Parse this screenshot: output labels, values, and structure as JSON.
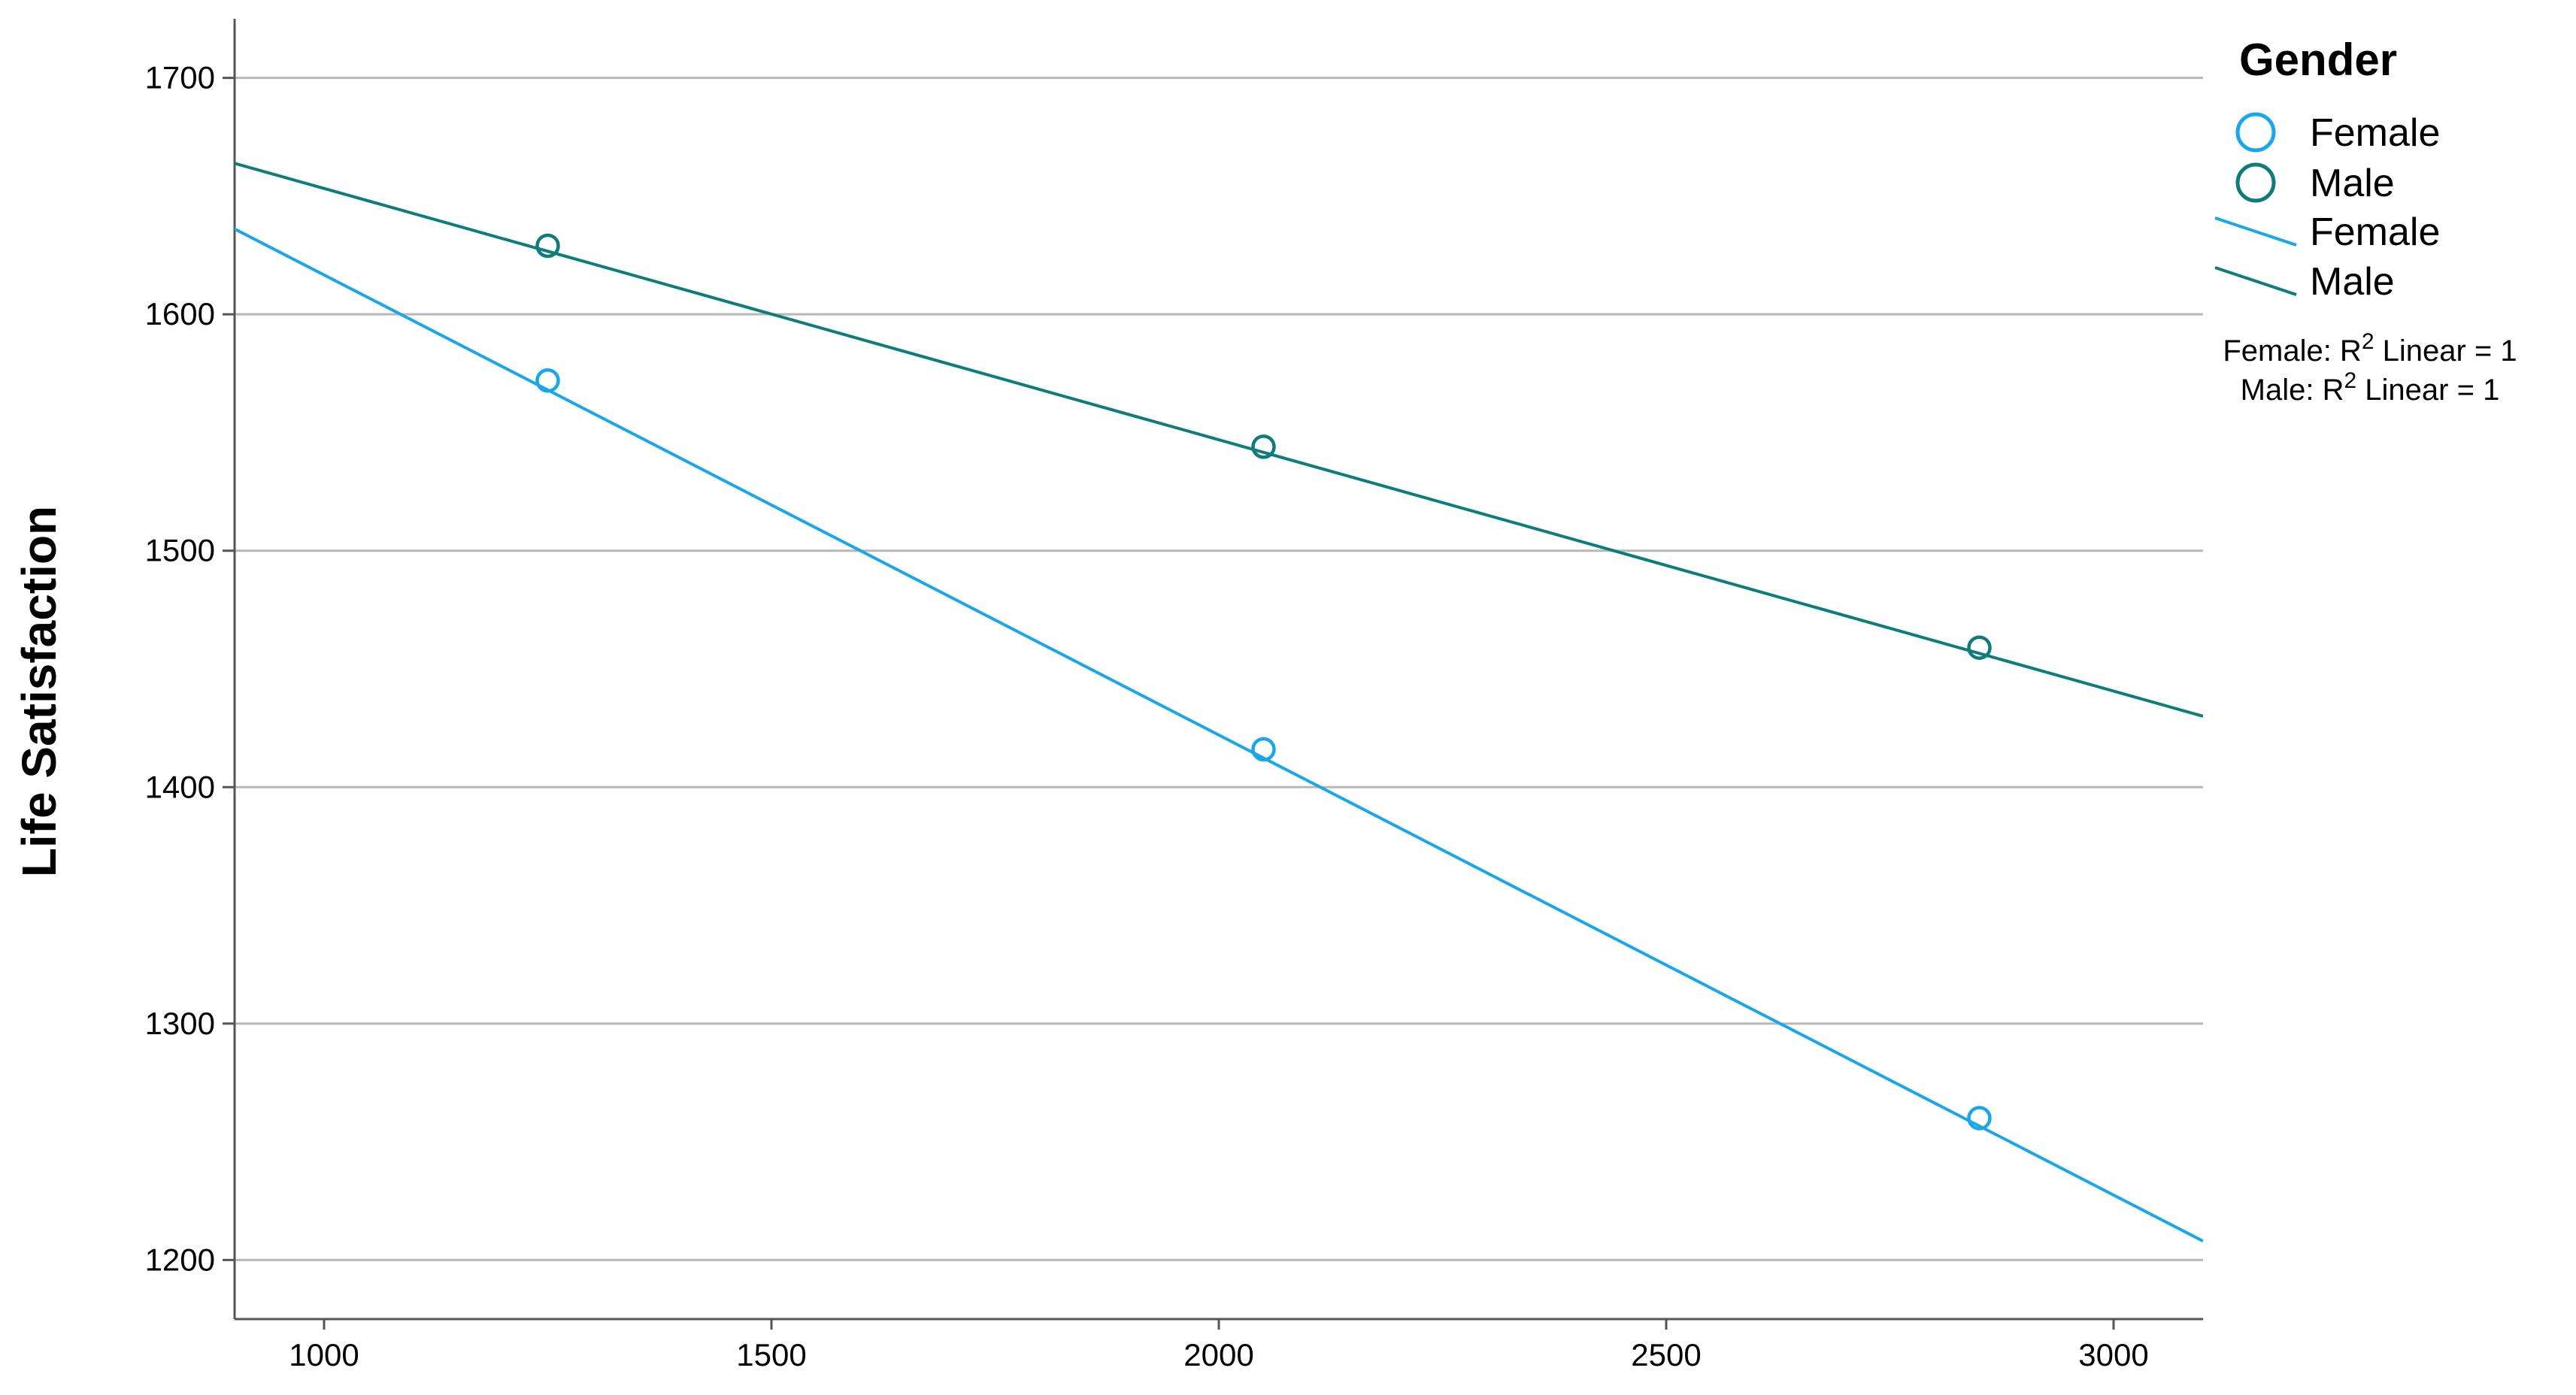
{
  "chart_data": {
    "type": "scatter",
    "title": "",
    "xlabel": "",
    "ylabel": "Life Satisfaction",
    "xlim": [
      900,
      3100
    ],
    "ylim": [
      1175,
      1725
    ],
    "x_ticks": [
      1000,
      1500,
      2000,
      2500,
      3000
    ],
    "y_ticks": [
      1200,
      1300,
      1400,
      1500,
      1600,
      1700
    ],
    "grid": "horizontal",
    "legend": {
      "title": "Gender",
      "position": "top-right",
      "marker_entries": [
        "Female",
        "Male"
      ],
      "line_entries": [
        "Female",
        "Male"
      ],
      "fit_notes": [
        {
          "prefix": "Female: R",
          "sup": "2",
          "suffix": " Linear = 1"
        },
        {
          "prefix": "Male: R",
          "sup": "2",
          "suffix": " Linear = 1"
        }
      ]
    },
    "series": [
      {
        "name": "Female",
        "color": "#1AA6E8",
        "x": [
          1250,
          2050,
          2850
        ],
        "y": [
          1572,
          1416,
          1260
        ],
        "fit": {
          "x": [
            880,
            3100
          ],
          "y": [
            1640,
            1208
          ]
        }
      },
      {
        "name": "Male",
        "color": "#0E7C7B",
        "x": [
          1250,
          2050,
          2850
        ],
        "y": [
          1629,
          1544,
          1459
        ],
        "fit": {
          "x": [
            880,
            3100
          ],
          "y": [
            1666,
            1430
          ]
        }
      }
    ]
  }
}
